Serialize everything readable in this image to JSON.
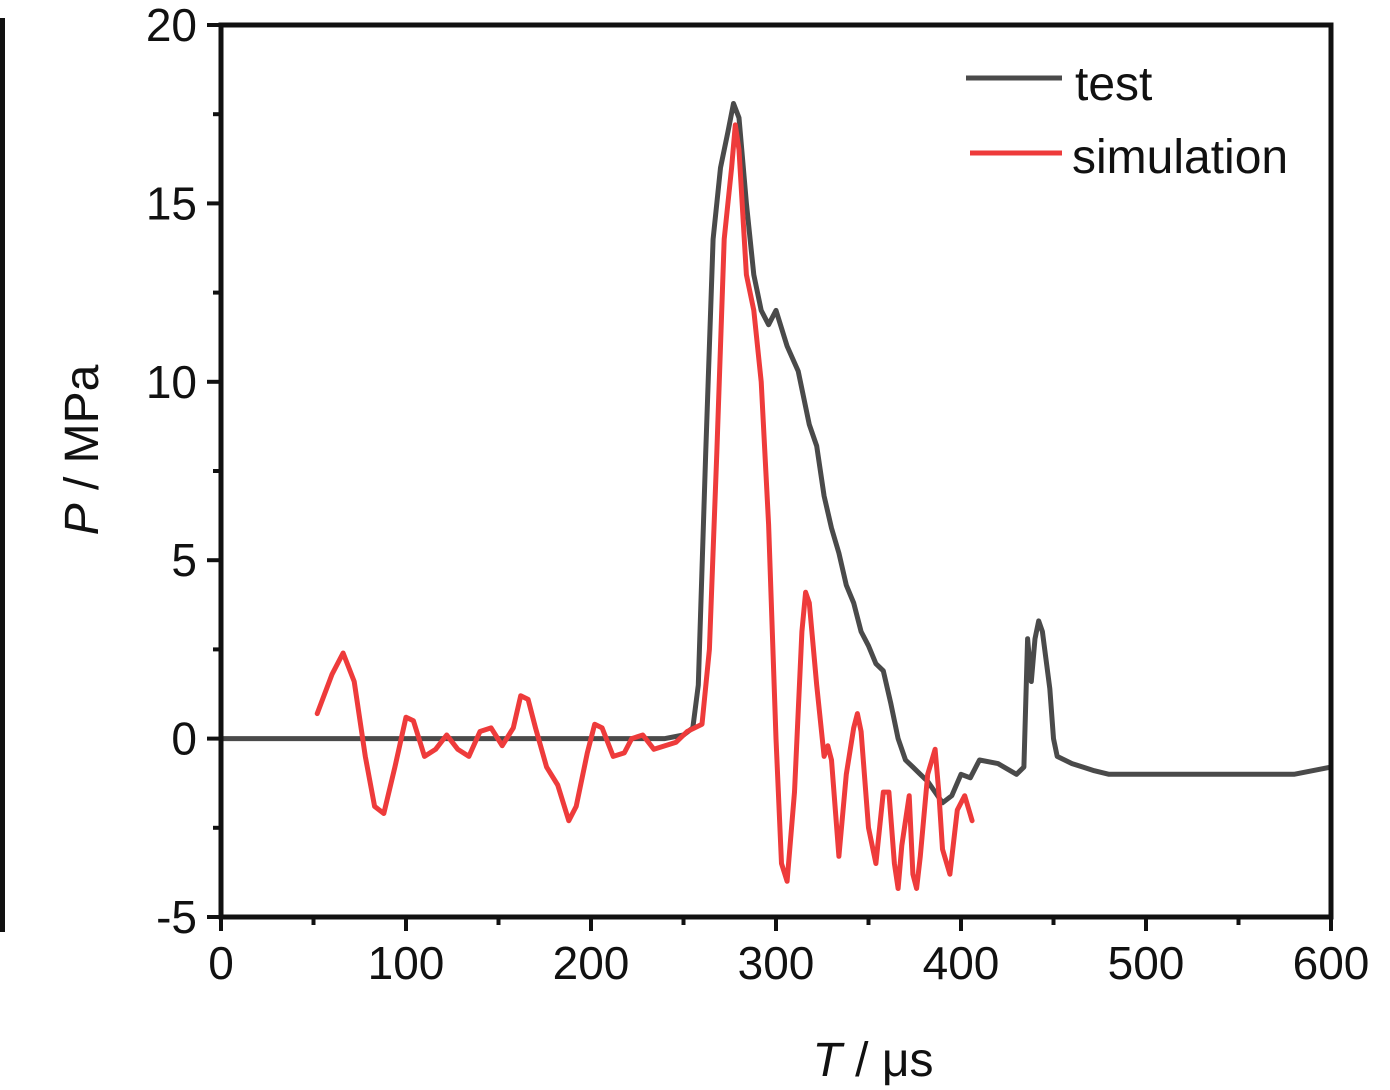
{
  "chart_data": {
    "type": "line",
    "xlabel": {
      "var": "T",
      "unit": " / μs"
    },
    "ylabel": {
      "var": "P",
      "unit": " / MPa"
    },
    "xlim": [
      0,
      600
    ],
    "ylim": [
      -5,
      20
    ],
    "xticks": [
      0,
      100,
      200,
      300,
      400,
      500,
      600
    ],
    "yticks": [
      -5,
      0,
      5,
      10,
      15,
      20
    ],
    "xtick_labels": [
      "0",
      "100",
      "200",
      "300",
      "400",
      "500",
      "600"
    ],
    "ytick_labels": [
      "-5",
      "0",
      "5",
      "10",
      "15",
      "20"
    ],
    "grid": false,
    "legend_position": "top-right",
    "series": [
      {
        "name": "test",
        "color": "#4a4a4a",
        "x": [
          0,
          50,
          100,
          150,
          200,
          240,
          250,
          255,
          258,
          262,
          266,
          270,
          274,
          277,
          280,
          284,
          288,
          292,
          296,
          300,
          306,
          312,
          318,
          322,
          326,
          330,
          334,
          338,
          342,
          346,
          350,
          354,
          358,
          362,
          366,
          370,
          374,
          378,
          382,
          386,
          390,
          395,
          400,
          405,
          410,
          420,
          430,
          434,
          436,
          438,
          440,
          442,
          444,
          446,
          448,
          450,
          452,
          456,
          460,
          466,
          472,
          480,
          490,
          500,
          520,
          540,
          560,
          580,
          600
        ],
        "y": [
          0,
          0,
          0,
          0,
          0,
          0,
          0.1,
          0.3,
          1.5,
          8.0,
          14.0,
          16.0,
          17.0,
          17.8,
          17.4,
          15.0,
          13.0,
          12.0,
          11.6,
          12.0,
          11.0,
          10.3,
          8.8,
          8.2,
          6.8,
          5.9,
          5.2,
          4.3,
          3.8,
          3.0,
          2.6,
          2.1,
          1.9,
          1.0,
          0.0,
          -0.6,
          -0.8,
          -1.0,
          -1.2,
          -1.5,
          -1.8,
          -1.6,
          -1.0,
          -1.1,
          -0.6,
          -0.7,
          -1.0,
          -0.8,
          2.8,
          1.6,
          2.8,
          3.3,
          3.0,
          2.2,
          1.4,
          0.0,
          -0.5,
          -0.6,
          -0.7,
          -0.8,
          -0.9,
          -1.0,
          -1.0,
          -1.0,
          -1.0,
          -1.0,
          -1.0,
          -1.0,
          -0.8
        ]
      },
      {
        "name": "simulation",
        "color": "#ee3b3b",
        "x": [
          52,
          60,
          66,
          72,
          78,
          83,
          88,
          94,
          100,
          104,
          110,
          116,
          122,
          128,
          134,
          140,
          146,
          152,
          158,
          162,
          166,
          170,
          176,
          182,
          188,
          192,
          198,
          202,
          206,
          212,
          218,
          222,
          228,
          234,
          240,
          246,
          252,
          256,
          260,
          264,
          268,
          272,
          276,
          278,
          280,
          284,
          288,
          292,
          296,
          300,
          303,
          306,
          310,
          314,
          316,
          318,
          322,
          326,
          328,
          330,
          334,
          338,
          342,
          344,
          346,
          350,
          354,
          358,
          361,
          364,
          366,
          368,
          372,
          374,
          376,
          378,
          382,
          386,
          388,
          390,
          394,
          398,
          402,
          406
        ],
        "y": [
          0.7,
          1.8,
          2.4,
          1.6,
          -0.5,
          -1.9,
          -2.1,
          -0.8,
          0.6,
          0.5,
          -0.5,
          -0.3,
          0.1,
          -0.3,
          -0.5,
          0.2,
          0.3,
          -0.2,
          0.3,
          1.2,
          1.1,
          0.3,
          -0.8,
          -1.3,
          -2.3,
          -1.9,
          -0.4,
          0.4,
          0.3,
          -0.5,
          -0.4,
          0.0,
          0.1,
          -0.3,
          -0.2,
          -0.1,
          0.2,
          0.3,
          0.4,
          2.5,
          8.0,
          14.0,
          16.0,
          17.2,
          16.5,
          13.0,
          12.0,
          10.0,
          6.0,
          0.0,
          -3.5,
          -4.0,
          -1.5,
          3.0,
          4.1,
          3.8,
          1.5,
          -0.5,
          -0.2,
          -0.6,
          -3.3,
          -1.0,
          0.3,
          0.7,
          0.2,
          -2.5,
          -3.5,
          -1.5,
          -1.5,
          -3.5,
          -4.2,
          -3.0,
          -1.6,
          -3.8,
          -4.2,
          -3.3,
          -1.0,
          -0.3,
          -1.5,
          -3.1,
          -3.8,
          -2.0,
          -1.6,
          -2.3
        ]
      }
    ]
  }
}
